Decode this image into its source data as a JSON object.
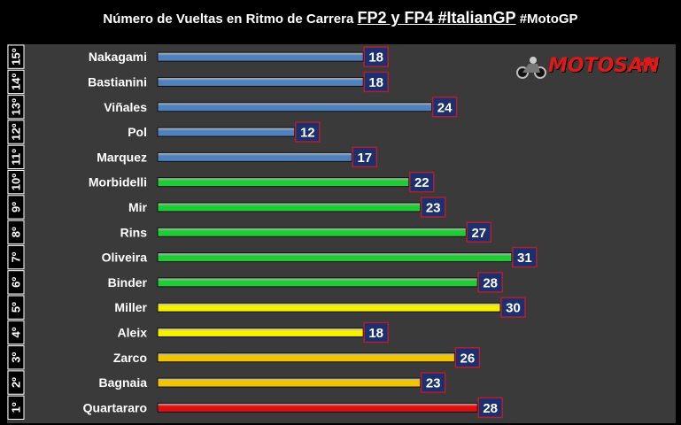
{
  "title": {
    "prefix": "Número de Vueltas en Ritmo de Carrera",
    "emphasis": "FP2 y FP4 #ItalianGP",
    "suffix": "#MotoGP"
  },
  "logo": {
    "text": "MOTOSAN",
    "icon": "motorcycle-icon"
  },
  "colors": {
    "background": "#000000",
    "plot": "#3a3a3a",
    "label_box": "#1c2f6e",
    "label_border": "#b4202a",
    "blue": "#4f81bd",
    "green": "#1fcc35",
    "yellow": "#f5ef00",
    "gold": "#f3c400",
    "red": "#e01010"
  },
  "chart_data": {
    "type": "bar",
    "orientation": "horizontal",
    "xlim": [
      0,
      36
    ],
    "rows": [
      {
        "position": "15º",
        "rider": "Nakagami",
        "laps": 18,
        "color": "blue"
      },
      {
        "position": "14º",
        "rider": "Bastianini",
        "laps": 18,
        "color": "blue"
      },
      {
        "position": "13º",
        "rider": "Viñales",
        "laps": 24,
        "color": "blue"
      },
      {
        "position": "12º",
        "rider": "Pol",
        "laps": 12,
        "color": "blue"
      },
      {
        "position": "11º",
        "rider": "Marquez",
        "laps": 17,
        "color": "blue"
      },
      {
        "position": "10º",
        "rider": "Morbidelli",
        "laps": 22,
        "color": "green"
      },
      {
        "position": "9º",
        "rider": "Mir",
        "laps": 23,
        "color": "green"
      },
      {
        "position": "8º",
        "rider": "Rins",
        "laps": 27,
        "color": "green"
      },
      {
        "position": "7º",
        "rider": "Oliveira",
        "laps": 31,
        "color": "green"
      },
      {
        "position": "6º",
        "rider": "Binder",
        "laps": 28,
        "color": "green"
      },
      {
        "position": "5º",
        "rider": "Miller",
        "laps": 30,
        "color": "yellow"
      },
      {
        "position": "4º",
        "rider": "Aleix",
        "laps": 18,
        "color": "yellow"
      },
      {
        "position": "3º",
        "rider": "Zarco",
        "laps": 26,
        "color": "gold"
      },
      {
        "position": "2º",
        "rider": "Bagnaia",
        "laps": 23,
        "color": "gold"
      },
      {
        "position": "1º",
        "rider": "Quartararo",
        "laps": 28,
        "color": "red"
      }
    ]
  }
}
